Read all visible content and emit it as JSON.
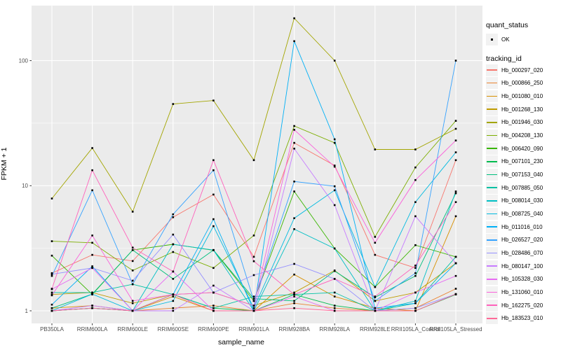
{
  "axes": {
    "xlabel": "sample_name",
    "ylabel": "FPKM + 1",
    "y_tick_labels": [
      "1",
      "10",
      "100"
    ]
  },
  "legend": {
    "quant_status_title": "quant_status",
    "quant_status_items": [
      {
        "label": "OK",
        "marker": "black-point"
      }
    ],
    "tracking_id_title": "tracking_id"
  },
  "colors": {
    "panel_background": "#EBEBEB",
    "grid": "#FFFFFF",
    "tick_label": "#4D4D4D",
    "point": "#000000",
    "legend_key_background": "#F2F2F2"
  },
  "chart_data": {
    "type": "line",
    "title": "",
    "xlabel": "sample_name",
    "ylabel": "FPKM + 1",
    "y_scale": "log10",
    "y_ticks": [
      1,
      10,
      100
    ],
    "y_minor_ticks": [
      3.162,
      31.62
    ],
    "ylim": [
      0.8,
      280
    ],
    "grid": true,
    "legend_position": "right",
    "marker": "black-point",
    "quant_status": "OK",
    "categories": [
      "PB350LA",
      "RRIM600LA",
      "RRIM600LE",
      "RRIM600SE",
      "RRIM600PE",
      "RRIM901LA",
      "RRIM928BA",
      "RRIM928LA",
      "RRIM928LE",
      "RRII105LA_Control",
      "RRII105LA_Stressed"
    ],
    "series": [
      {
        "name": "Hb_000297_020",
        "color": "#F8766D",
        "values": [
          2.0,
          2.8,
          2.5,
          5.6,
          8.5,
          2.7,
          22,
          14.5,
          2.8,
          2.2,
          16
        ]
      },
      {
        "name": "Hb_000866_250",
        "color": "#EA8331",
        "values": [
          1.0,
          1.05,
          1.0,
          1.05,
          1.1,
          1.0,
          1.15,
          1.05,
          1.0,
          1.05,
          1.5
        ]
      },
      {
        "name": "Hb_001080_010",
        "color": "#D89000",
        "values": [
          1.05,
          1.1,
          1.0,
          1.3,
          1.0,
          1.0,
          1.95,
          1.3,
          1.05,
          1.0,
          5.7
        ]
      },
      {
        "name": "Hb_001268_130",
        "color": "#C09B00",
        "values": [
          1.35,
          1.4,
          1.15,
          1.35,
          1.4,
          1.1,
          1.4,
          2.1,
          1.2,
          1.4,
          2.4
        ]
      },
      {
        "name": "Hb_001946_030",
        "color": "#A3A500",
        "values": [
          7.9,
          20,
          6.2,
          45,
          48,
          16,
          218,
          100,
          19.5,
          19.5,
          28.5
        ]
      },
      {
        "name": "Hb_004208_130",
        "color": "#7CAE00",
        "values": [
          3.6,
          3.5,
          2.1,
          2.95,
          2.2,
          4.0,
          30,
          22,
          3.9,
          14,
          33
        ]
      },
      {
        "name": "Hb_006420_090",
        "color": "#39B600",
        "values": [
          2.76,
          1.35,
          3.06,
          3.4,
          3.05,
          1.2,
          9.0,
          3.15,
          1.55,
          3.35,
          2.7
        ]
      },
      {
        "name": "Hb_007101_230",
        "color": "#00BB4E",
        "values": [
          1.0,
          1.05,
          1.0,
          1.35,
          1.05,
          1.0,
          1.35,
          1.1,
          1.0,
          1.0,
          1.35
        ]
      },
      {
        "name": "Hb_007153_040",
        "color": "#00BF7D",
        "values": [
          1.05,
          1.36,
          3.06,
          1.8,
          3.06,
          1.25,
          1.2,
          2.08,
          1.28,
          1.9,
          8.7
        ]
      },
      {
        "name": "Hb_007885_050",
        "color": "#00C1A3",
        "values": [
          1.4,
          1.4,
          1.63,
          1.35,
          1.05,
          1.3,
          1.35,
          1.4,
          1.0,
          1.15,
          2.7
        ]
      },
      {
        "name": "Hb_008014_030",
        "color": "#00BFC4",
        "values": [
          1.0,
          1.05,
          1.0,
          3.4,
          3.06,
          1.0,
          4.5,
          3.15,
          1.0,
          1.2,
          9.0
        ]
      },
      {
        "name": "Hb_008725_040",
        "color": "#00BAE0",
        "values": [
          1.0,
          1.36,
          1.0,
          1.2,
          4.75,
          1.05,
          5.5,
          9.2,
          1.55,
          7.4,
          18.5
        ]
      },
      {
        "name": "Hb_011016_010",
        "color": "#00B0F6",
        "values": [
          1.12,
          2.27,
          1.0,
          1.35,
          5.4,
          1.0,
          143,
          23.5,
          1.05,
          1.15,
          2.4
        ]
      },
      {
        "name": "Hb_026527_020",
        "color": "#35A2FF",
        "values": [
          1.9,
          9.2,
          1.63,
          5.9,
          13.3,
          1.2,
          10.8,
          9.9,
          1.2,
          2.0,
          100
        ]
      },
      {
        "name": "Hb_028486_070",
        "color": "#9590FF",
        "values": [
          1.96,
          2.2,
          1.74,
          4.07,
          1.4,
          1.93,
          2.37,
          1.8,
          1.0,
          1.05,
          1.36
        ]
      },
      {
        "name": "Hb_080147_100",
        "color": "#C77CFF",
        "values": [
          1.0,
          1.1,
          1.0,
          1.0,
          1.59,
          1.0,
          19.8,
          7.0,
          1.0,
          5.7,
          2.4
        ]
      },
      {
        "name": "Hb_105328_030",
        "color": "#E76BF3",
        "values": [
          1.49,
          2.2,
          1.0,
          2.06,
          1.0,
          1.0,
          1.3,
          1.0,
          1.0,
          1.4,
          1.9
        ]
      },
      {
        "name": "Hb_131060_010",
        "color": "#FA62DB",
        "values": [
          1.33,
          4.0,
          1.2,
          1.35,
          1.4,
          1.1,
          28,
          14.2,
          3.5,
          11.1,
          23
        ]
      },
      {
        "name": "Hb_162275_020",
        "color": "#FF62BC",
        "values": [
          1.5,
          13.3,
          3.2,
          2.06,
          16,
          2.49,
          1.35,
          1.8,
          1.3,
          2.3,
          7.4
        ]
      },
      {
        "name": "Hb_183523_010",
        "color": "#FF6A98",
        "values": [
          1.0,
          1.05,
          1.0,
          1.35,
          1.0,
          1.0,
          1.05,
          1.0,
          1.0,
          1.0,
          1.36
        ]
      }
    ]
  }
}
